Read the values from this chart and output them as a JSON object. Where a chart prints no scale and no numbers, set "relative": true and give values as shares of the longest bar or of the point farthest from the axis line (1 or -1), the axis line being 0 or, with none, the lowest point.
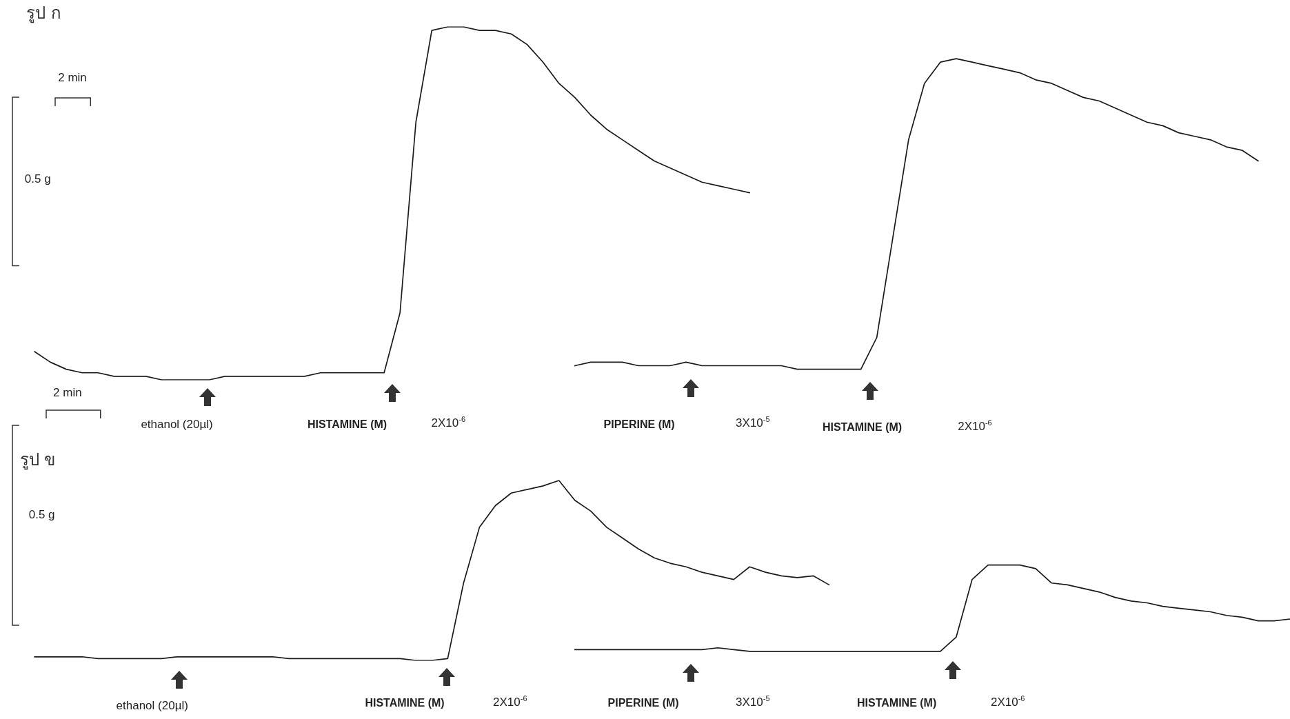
{
  "chart_data": [
    {
      "type": "line",
      "title": "รูป ก",
      "relative": true,
      "tick_labels": false,
      "marker": "none",
      "line_style": "solid",
      "annotations": [
        "2 min",
        "0.5 g",
        "ethanol (20µl)",
        "HISTAMINE (M)",
        "2X10$^{-6}$",
        "PIPERINE (M)",
        "3X10$^{-5}$",
        "HISTAMINE (M)",
        "2X10$^{-6}$"
      ],
      "categories": [
        null,
        null,
        null,
        null,
        null,
        null,
        null,
        null,
        null,
        null,
        null,
        null,
        null,
        null,
        null,
        null,
        null,
        null,
        null,
        null,
        null,
        null,
        null,
        null,
        null,
        null,
        null,
        null,
        null,
        null,
        null,
        null,
        null,
        null,
        null,
        null,
        null,
        null,
        null,
        null,
        null,
        null,
        null,
        null,
        null,
        null,
        null,
        null,
        null,
        null,
        null,
        null,
        null,
        null,
        null,
        null,
        null,
        null,
        null,
        null,
        null,
        null,
        null,
        null,
        null,
        null,
        null,
        null,
        null,
        null,
        null,
        null,
        null,
        null,
        null,
        null,
        null,
        null,
        null,
        null
      ],
      "series": [
        {
          "color": "#1a1a1a",
          "values": [
            0.08,
            0.05,
            0.03,
            0.02,
            0.02,
            0.01,
            0.01,
            0.01,
            0,
            0,
            0,
            0,
            0.01,
            0.01,
            0.01,
            0.01,
            0.01,
            0.01,
            0.02,
            0.02,
            0.02,
            0.02,
            0.02,
            0.19,
            0.73,
            0.99,
            1,
            1,
            0.99,
            0.99,
            0.98,
            0.95,
            0.9,
            0.84,
            0.8,
            0.75,
            0.71,
            0.68,
            0.65,
            0.62,
            0.6,
            0.58,
            0.56,
            0.55,
            0.54,
            0.53,
            null,
            null,
            null,
            null,
            null,
            null,
            null,
            null,
            null,
            null,
            null,
            null,
            null,
            null,
            null,
            null,
            null,
            null,
            null,
            null,
            null,
            null,
            null,
            null,
            null,
            null,
            null,
            null,
            null,
            null,
            null,
            null,
            null,
            null
          ]
        },
        {
          "color": "#1a1a1a",
          "values": [
            null,
            null,
            null,
            null,
            null,
            null,
            null,
            null,
            null,
            null,
            null,
            null,
            null,
            null,
            null,
            null,
            null,
            null,
            null,
            null,
            null,
            null,
            null,
            null,
            null,
            null,
            null,
            null,
            null,
            null,
            null,
            null,
            null,
            null,
            0.04,
            0.05,
            0.05,
            0.05,
            0.04,
            0.04,
            0.04,
            0.05,
            0.04,
            0.04,
            0.04,
            0.04,
            0.04,
            0.04,
            0.03,
            0.03,
            0.03,
            0.03,
            0.03,
            0.12,
            0.4,
            0.68,
            0.84,
            0.9,
            0.91,
            0.9,
            0.89,
            0.88,
            0.87,
            0.85,
            0.84,
            0.82,
            0.8,
            0.79,
            0.77,
            0.75,
            0.73,
            0.72,
            0.7,
            0.69,
            0.68,
            0.66,
            0.65,
            0.62,
            null,
            null
          ]
        }
      ]
    },
    {
      "type": "line",
      "title": "รูป ข",
      "relative": true,
      "tick_labels": false,
      "marker": "none",
      "line_style": "solid",
      "annotations": [
        "2 min",
        "0.5 g",
        "ethanol (20µl)",
        "HISTAMINE (M)",
        "2X10$^{-6}$",
        "PIPERINE (M)",
        "3X10$^{-5}$",
        "HISTAMINE (M)",
        "2X10$^{-6}$"
      ],
      "categories": [
        null,
        null,
        null,
        null,
        null,
        null,
        null,
        null,
        null,
        null,
        null,
        null,
        null,
        null,
        null,
        null,
        null,
        null,
        null,
        null,
        null,
        null,
        null,
        null,
        null,
        null,
        null,
        null,
        null,
        null,
        null,
        null,
        null,
        null,
        null,
        null,
        null,
        null,
        null,
        null,
        null,
        null,
        null,
        null,
        null,
        null,
        null,
        null,
        null,
        null,
        null,
        null,
        null,
        null,
        null,
        null,
        null,
        null,
        null,
        null,
        null,
        null,
        null,
        null,
        null,
        null,
        null,
        null,
        null,
        null,
        null,
        null,
        null,
        null,
        null,
        null,
        null,
        null,
        null,
        null
      ],
      "series": [
        {
          "color": "#1a1a1a",
          "values": [
            0.02,
            0.02,
            0.02,
            0.02,
            0.01,
            0.01,
            0.01,
            0.01,
            0.01,
            0.02,
            0.02,
            0.02,
            0.02,
            0.02,
            0.02,
            0.02,
            0.01,
            0.01,
            0.01,
            0.01,
            0.01,
            0.01,
            0.01,
            0.01,
            0,
            0,
            0.01,
            0.43,
            0.74,
            0.86,
            0.93,
            0.95,
            0.97,
            1,
            0.89,
            0.83,
            0.74,
            0.68,
            0.62,
            0.57,
            0.54,
            0.52,
            0.49,
            0.47,
            0.45,
            0.52,
            0.49,
            0.47,
            0.46,
            0.47,
            0.42,
            null,
            null,
            null,
            null,
            null,
            null,
            null,
            null,
            null,
            null,
            null,
            null,
            null,
            null,
            null,
            null,
            null,
            null,
            null,
            null,
            null,
            null,
            null,
            null,
            null,
            null,
            null,
            null,
            null
          ]
        },
        {
          "color": "#1a1a1a",
          "values": [
            null,
            null,
            null,
            null,
            null,
            null,
            null,
            null,
            null,
            null,
            null,
            null,
            null,
            null,
            null,
            null,
            null,
            null,
            null,
            null,
            null,
            null,
            null,
            null,
            null,
            null,
            null,
            null,
            null,
            null,
            null,
            null,
            null,
            null,
            0.06,
            0.06,
            0.06,
            0.06,
            0.06,
            0.06,
            0.06,
            0.06,
            0.06,
            0.07,
            0.06,
            0.05,
            0.05,
            0.05,
            0.05,
            0.05,
            0.05,
            0.05,
            0.05,
            0.05,
            0.05,
            0.05,
            0.05,
            0.05,
            0.13,
            0.45,
            0.53,
            0.53,
            0.53,
            0.51,
            0.43,
            0.42,
            0.4,
            0.38,
            0.35,
            0.33,
            0.32,
            0.3,
            0.29,
            0.28,
            0.27,
            0.25,
            0.24,
            0.22,
            0.22,
            0.23
          ]
        }
      ]
    }
  ]
}
